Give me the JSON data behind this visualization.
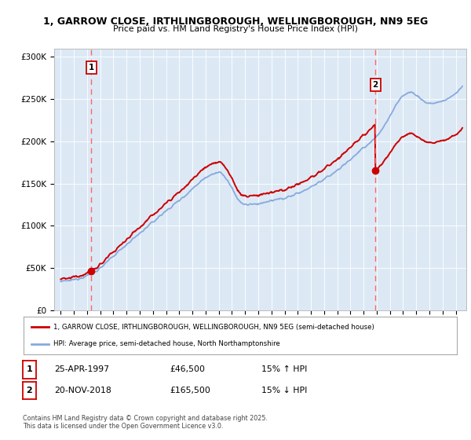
{
  "title_line1": "1, GARROW CLOSE, IRTHLINGBOROUGH, WELLINGBOROUGH, NN9 5EG",
  "title_line2": "Price paid vs. HM Land Registry's House Price Index (HPI)",
  "background_color": "#ffffff",
  "plot_bg_color": "#dce9f5",
  "legend_label_red": "1, GARROW CLOSE, IRTHLINGBOROUGH, WELLINGBOROUGH, NN9 5EG (semi-detached house)",
  "legend_label_blue": "HPI: Average price, semi-detached house, North Northamptonshire",
  "annotation1_date": "25-APR-1997",
  "annotation1_price": "£46,500",
  "annotation1_hpi": "15% ↑ HPI",
  "annotation1_year": 1997.32,
  "annotation1_value": 46500,
  "annotation2_date": "20-NOV-2018",
  "annotation2_price": "£165,500",
  "annotation2_hpi": "15% ↓ HPI",
  "annotation2_year": 2018.89,
  "annotation2_value": 165500,
  "footer_text": "Contains HM Land Registry data © Crown copyright and database right 2025.\nThis data is licensed under the Open Government Licence v3.0.",
  "ylim": [
    0,
    310000
  ],
  "xlim_start": 1994.5,
  "xlim_end": 2025.8,
  "red_color": "#cc0000",
  "blue_color": "#88aadd",
  "dashed_color": "#ff6666"
}
